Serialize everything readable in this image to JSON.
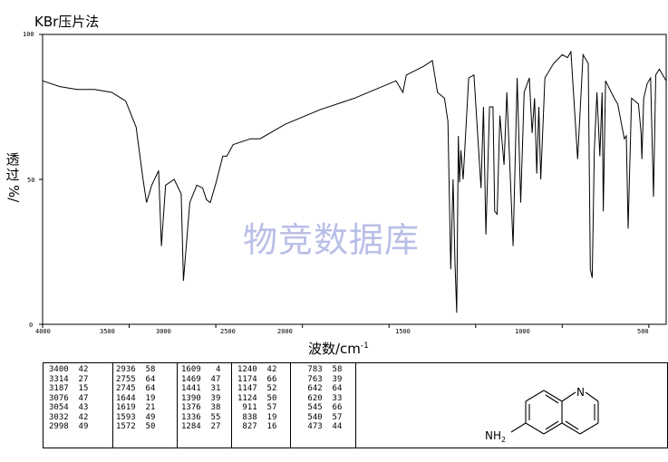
{
  "header": {
    "title": "KBr压片法",
    "y_axis_label_chars": [
      "透",
      "过"
    ],
    "y_axis_unit": "%/",
    "x_axis_label": "波数/cm",
    "x_axis_exp": "-1",
    "watermark": "物竞数据库"
  },
  "chart_data": {
    "type": "line",
    "title": "KBr压片法",
    "xlabel": "波数/cm-1",
    "ylabel": "透过%",
    "xlim": [
      4000,
      400
    ],
    "ylim": [
      0,
      100
    ],
    "x_ticks": [
      "4000",
      "3000",
      "2000",
      "1000",
      "1500",
      "2500",
      "3500",
      "500"
    ],
    "y_ticks": [
      "0",
      "50",
      "100"
    ],
    "series": [
      {
        "values": [
          [
            4000,
            84
          ],
          [
            3900,
            82
          ],
          [
            3800,
            81
          ],
          [
            3700,
            81
          ],
          [
            3600,
            80
          ],
          [
            3520,
            77
          ],
          [
            3460,
            68
          ],
          [
            3420,
            50
          ],
          [
            3400,
            42
          ],
          [
            3370,
            48
          ],
          [
            3330,
            53
          ],
          [
            3314,
            27
          ],
          [
            3290,
            48
          ],
          [
            3240,
            50
          ],
          [
            3200,
            45
          ],
          [
            3187,
            15
          ],
          [
            3150,
            42
          ],
          [
            3110,
            48
          ],
          [
            3076,
            47
          ],
          [
            3054,
            43
          ],
          [
            3032,
            42
          ],
          [
            2998,
            49
          ],
          [
            2960,
            58
          ],
          [
            2936,
            58
          ],
          [
            2900,
            62
          ],
          [
            2800,
            64
          ],
          [
            2755,
            64
          ],
          [
            2745,
            64
          ],
          [
            2600,
            69
          ],
          [
            2400,
            74
          ],
          [
            2200,
            78
          ],
          [
            2000,
            83
          ],
          [
            1960,
            84
          ],
          [
            1920,
            80
          ],
          [
            1900,
            86
          ],
          [
            1800,
            89
          ],
          [
            1750,
            91
          ],
          [
            1720,
            80
          ],
          [
            1680,
            78
          ],
          [
            1660,
            70
          ],
          [
            1644,
            19
          ],
          [
            1630,
            50
          ],
          [
            1619,
            21
          ],
          [
            1609,
            4
          ],
          [
            1600,
            65
          ],
          [
            1593,
            49
          ],
          [
            1585,
            60
          ],
          [
            1572,
            50
          ],
          [
            1540,
            85
          ],
          [
            1510,
            86
          ],
          [
            1469,
            47
          ],
          [
            1455,
            75
          ],
          [
            1441,
            31
          ],
          [
            1420,
            75
          ],
          [
            1400,
            75
          ],
          [
            1390,
            39
          ],
          [
            1376,
            38
          ],
          [
            1360,
            72
          ],
          [
            1336,
            55
          ],
          [
            1320,
            80
          ],
          [
            1284,
            27
          ],
          [
            1260,
            85
          ],
          [
            1240,
            42
          ],
          [
            1220,
            80
          ],
          [
            1190,
            85
          ],
          [
            1174,
            66
          ],
          [
            1160,
            78
          ],
          [
            1147,
            52
          ],
          [
            1135,
            75
          ],
          [
            1124,
            50
          ],
          [
            1100,
            85
          ],
          [
            1050,
            90
          ],
          [
            1000,
            93
          ],
          [
            970,
            92
          ],
          [
            950,
            94
          ],
          [
            911,
            57
          ],
          [
            880,
            93
          ],
          [
            850,
            90
          ],
          [
            838,
            19
          ],
          [
            827,
            16
          ],
          [
            815,
            60
          ],
          [
            800,
            80
          ],
          [
            783,
            58
          ],
          [
            770,
            80
          ],
          [
            763,
            39
          ],
          [
            750,
            84
          ],
          [
            700,
            78
          ],
          [
            680,
            76
          ],
          [
            642,
            64
          ],
          [
            630,
            65
          ],
          [
            620,
            33
          ],
          [
            600,
            78
          ],
          [
            560,
            76
          ],
          [
            545,
            66
          ],
          [
            540,
            57
          ],
          [
            530,
            78
          ],
          [
            510,
            83
          ],
          [
            490,
            85
          ],
          [
            473,
            44
          ],
          [
            460,
            86
          ],
          [
            440,
            88
          ],
          [
            420,
            86
          ],
          [
            400,
            84
          ]
        ]
      }
    ],
    "grid": false
  },
  "peak_table": [
    [
      "3400",
      "42"
    ],
    [
      "3314",
      "27"
    ],
    [
      "3187",
      "15"
    ],
    [
      "3076",
      "47"
    ],
    [
      "3054",
      "43"
    ],
    [
      "3032",
      "42"
    ],
    [
      "2998",
      "49"
    ],
    [
      "2936",
      "58"
    ],
    [
      "2755",
      "64"
    ],
    [
      "2745",
      "64"
    ],
    [
      "1644",
      "19"
    ],
    [
      "1619",
      "21"
    ],
    [
      "1593",
      "49"
    ],
    [
      "1572",
      "50"
    ],
    [
      "1609",
      "4"
    ],
    [
      "1469",
      "47"
    ],
    [
      "1441",
      "31"
    ],
    [
      "1390",
      "39"
    ],
    [
      "1376",
      "38"
    ],
    [
      "1336",
      "55"
    ],
    [
      "1284",
      "27"
    ],
    [
      "1240",
      "42"
    ],
    [
      "1174",
      "66"
    ],
    [
      "1147",
      "52"
    ],
    [
      "1124",
      "50"
    ],
    [
      "911",
      "57"
    ],
    [
      "838",
      "19"
    ],
    [
      "827",
      "16"
    ],
    [
      "783",
      "58"
    ],
    [
      "763",
      "39"
    ],
    [
      "642",
      "64"
    ],
    [
      "620",
      "33"
    ],
    [
      "545",
      "66"
    ],
    [
      "540",
      "57"
    ],
    [
      "473",
      "44"
    ]
  ],
  "structure": {
    "ring_atom": "N",
    "substituent": "NH",
    "substituent_sub": "2"
  }
}
